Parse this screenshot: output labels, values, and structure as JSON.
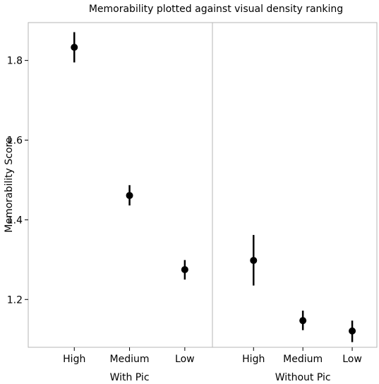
{
  "chart_data": {
    "type": "scatter",
    "title": "Memorability plotted against visual density ranking",
    "ylabel": "Memorability Score",
    "xlabel": "",
    "ylim": [
      1.08,
      1.895
    ],
    "yticks": [
      1.2,
      1.4,
      1.6,
      1.8
    ],
    "grid": false,
    "legend": "none",
    "marker_color": "#000000",
    "panel_divider_color": "#b5b5b5",
    "panels": [
      {
        "name": "With Pic",
        "categories": [
          "High",
          "Medium",
          "Low"
        ],
        "values": [
          1.833,
          1.461,
          1.275
        ],
        "errors": [
          [
            1.795,
            1.871
          ],
          [
            1.436,
            1.487
          ],
          [
            1.25,
            1.299
          ]
        ]
      },
      {
        "name": "Without Pic",
        "categories": [
          "High",
          "Medium",
          "Low"
        ],
        "values": [
          1.298,
          1.147,
          1.121
        ],
        "errors": [
          [
            1.235,
            1.362
          ],
          [
            1.123,
            1.172
          ],
          [
            1.093,
            1.147
          ]
        ]
      }
    ]
  }
}
